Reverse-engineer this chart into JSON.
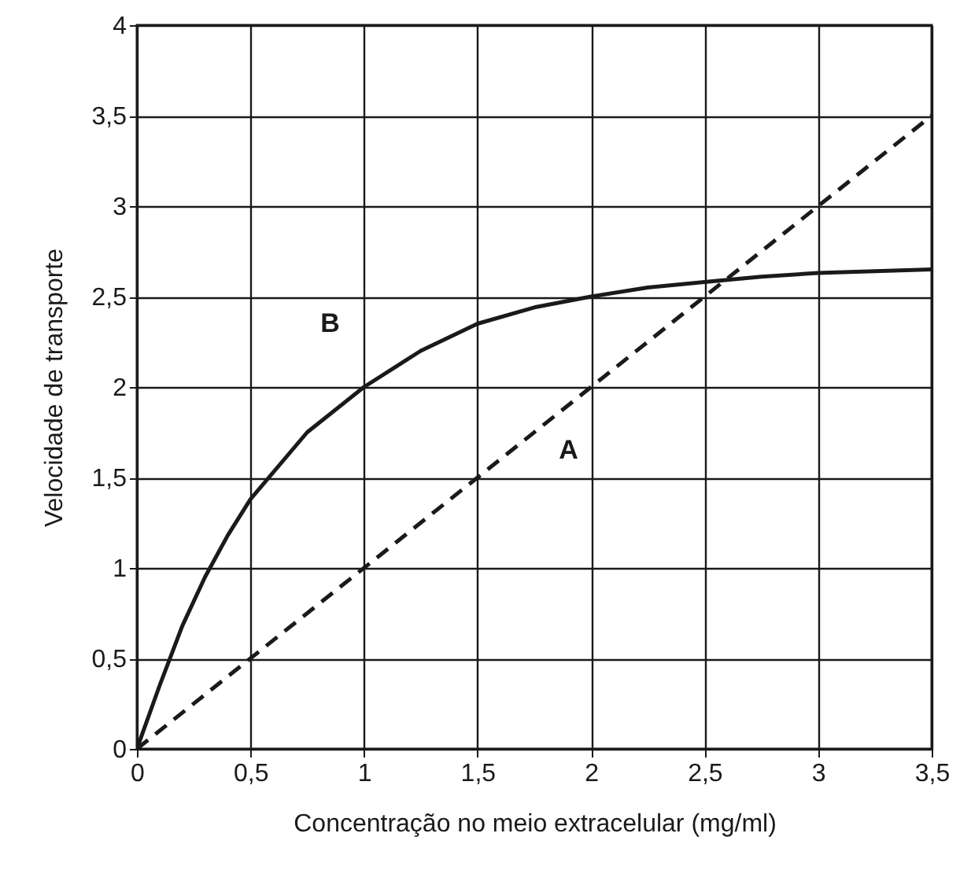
{
  "chart_data": {
    "type": "line",
    "xlabel": "Concentração no meio extracelular (mg/ml)",
    "ylabel": "Velocidade de transporte",
    "xlim": [
      0,
      3.5
    ],
    "ylim": [
      0,
      4
    ],
    "xticks": [
      0,
      {
        "value": 0.5,
        "label": "0,5"
      },
      1,
      {
        "value": 1.5,
        "label": "1,5"
      },
      2,
      {
        "value": 2.5,
        "label": "2,5"
      },
      3,
      {
        "value": 3.5,
        "label": "3,5"
      }
    ],
    "yticks": [
      0,
      {
        "value": 0.5,
        "label": "0,5"
      },
      1,
      {
        "value": 1.5,
        "label": "1,5"
      },
      2,
      {
        "value": 2.5,
        "label": "2,5"
      },
      3,
      {
        "value": 3.5,
        "label": "3,5"
      },
      4
    ],
    "grid": true,
    "marker": "none",
    "series": [
      {
        "name": "A",
        "color": "#1a1a1a",
        "line_style": "dashed",
        "x": [
          0,
          3.5
        ],
        "values": [
          0,
          3.5
        ]
      },
      {
        "name": "B",
        "color": "#1a1a1a",
        "line_style": "solid",
        "x": [
          0,
          0.1,
          0.2,
          0.3,
          0.4,
          0.5,
          0.75,
          1,
          1.25,
          1.5,
          1.75,
          2,
          2.25,
          2.5,
          2.75,
          3,
          3.25,
          3.5
        ],
        "values": [
          0,
          0.35,
          0.68,
          0.95,
          1.18,
          1.38,
          1.75,
          2,
          2.2,
          2.35,
          2.44,
          2.5,
          2.55,
          2.58,
          2.61,
          2.63,
          2.64,
          2.65
        ]
      }
    ]
  }
}
